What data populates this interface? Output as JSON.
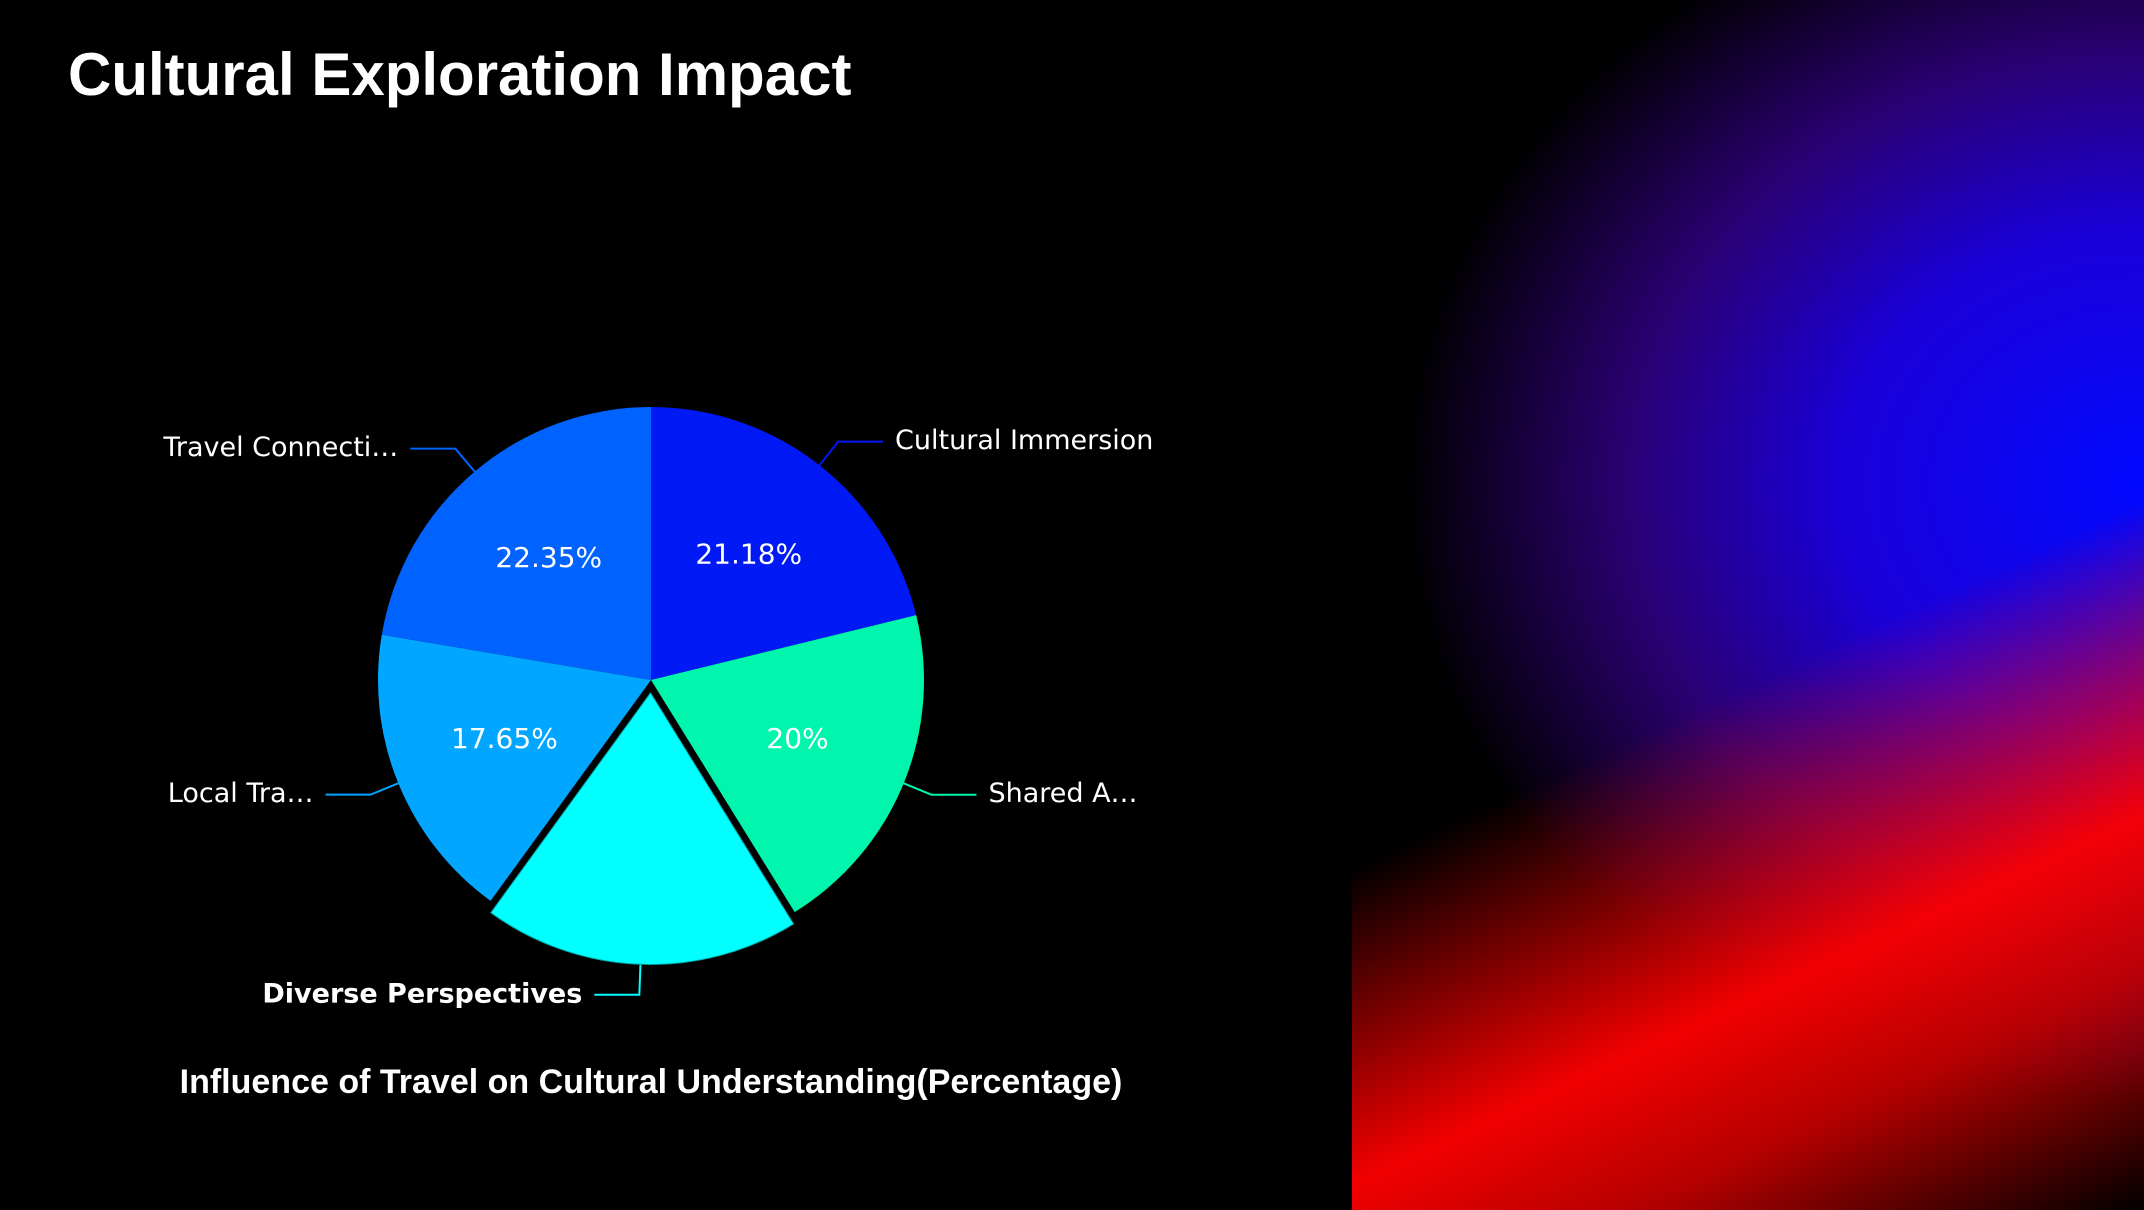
{
  "chart_data": {
    "type": "pie",
    "title": "Cultural Exploration Impact",
    "subtitle": "Influence of Travel on Cultural Understanding(Percentage)",
    "categories": [
      "Cultural Immersion",
      "Shared A…",
      "Diverse Perspectives",
      "Local Tra…",
      "Travel Connecti…"
    ],
    "values": [
      21.18,
      20,
      18.82,
      17.65,
      22.35
    ],
    "value_labels": [
      "21.18%",
      "20%",
      null,
      "17.65%",
      "22.35%"
    ],
    "colors": [
      "#0019f5",
      "#00f5ad",
      "#00ffff",
      "#00a6ff",
      "#0062ff"
    ],
    "selected_index": 2
  }
}
